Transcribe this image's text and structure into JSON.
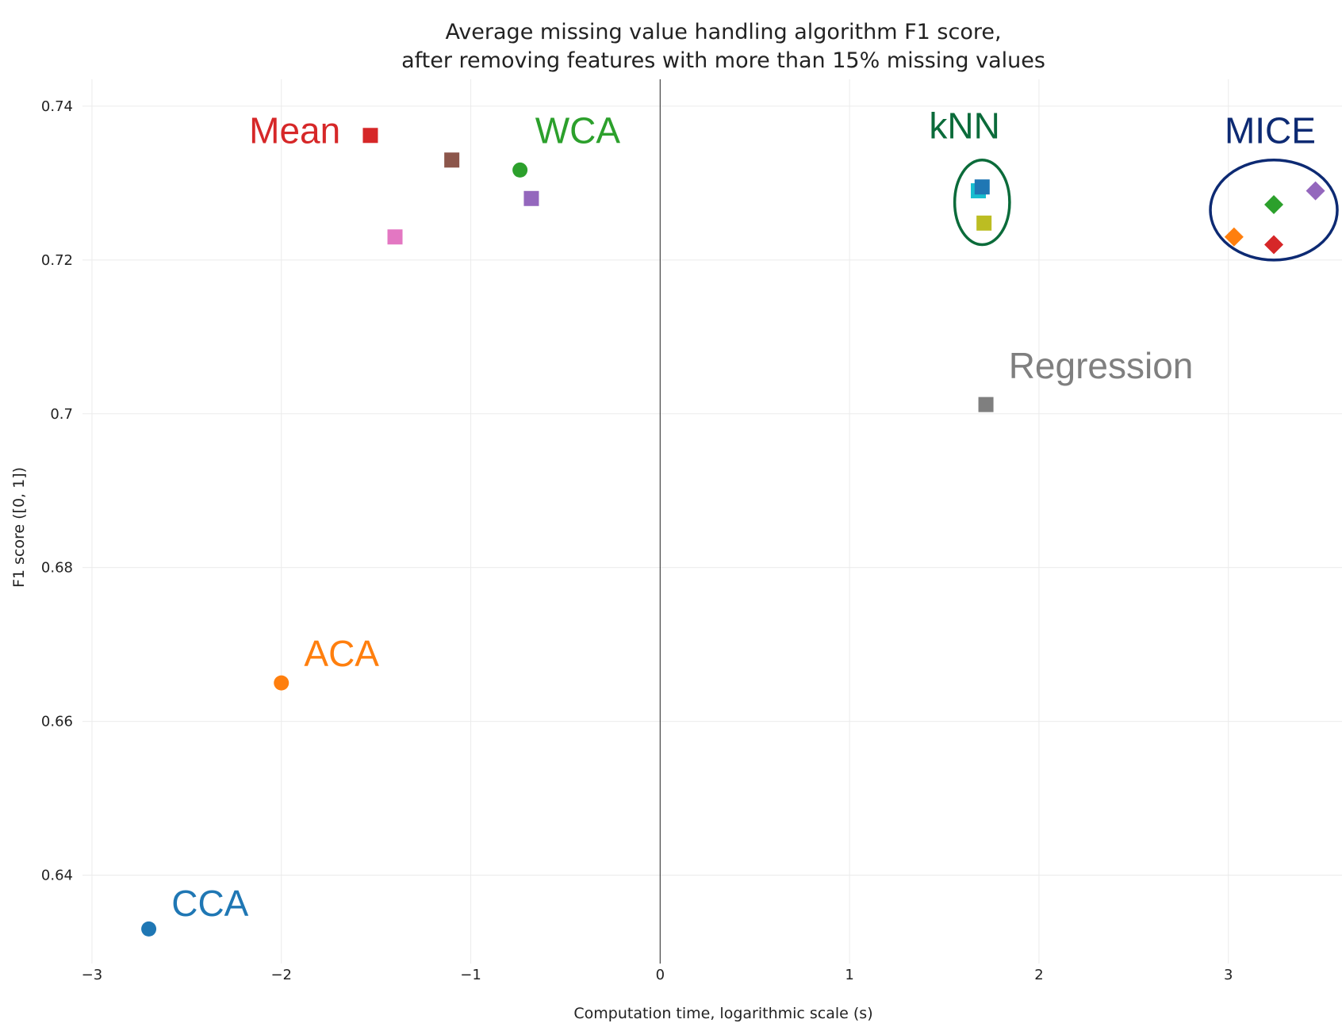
{
  "chart_data": {
    "type": "scatter",
    "title": [
      "Average missing value handling algorithm F1 score,",
      "after removing features with more than 15% missing values"
    ],
    "xlabel": "Computation time, logarithmic scale (s)",
    "ylabel": "F1 score ([0, 1])",
    "xlim": [
      -3.05,
      3.6
    ],
    "ylim": [
      0.6285,
      0.7435
    ],
    "xticks": [
      -3,
      -2,
      -1,
      0,
      1,
      2,
      3
    ],
    "xtick_labels": [
      "−3",
      "−2",
      "−1",
      "0",
      "1",
      "2",
      "3"
    ],
    "yticks": [
      0.64,
      0.66,
      0.68,
      0.7,
      0.72,
      0.74
    ],
    "ytick_labels": [
      "0.64",
      "0.66",
      "0.68",
      "0.7",
      "0.72",
      "0.74"
    ],
    "grid": true,
    "zero_line": "x = 0 vertical line",
    "points": [
      {
        "x": -2.7,
        "y": 0.633,
        "marker": "circle",
        "color": "#1f77b4"
      },
      {
        "x": -2.0,
        "y": 0.665,
        "marker": "circle",
        "color": "#ff7f0e"
      },
      {
        "x": -1.53,
        "y": 0.7362,
        "marker": "square",
        "color": "#d62728"
      },
      {
        "x": -1.1,
        "y": 0.733,
        "marker": "square",
        "color": "#8c564b"
      },
      {
        "x": -1.4,
        "y": 0.723,
        "marker": "square",
        "color": "#e377c2"
      },
      {
        "x": -0.74,
        "y": 0.7317,
        "marker": "circle",
        "color": "#2ca02c"
      },
      {
        "x": -0.68,
        "y": 0.728,
        "marker": "square",
        "color": "#9467bd"
      },
      {
        "x": 1.68,
        "y": 0.729,
        "marker": "square",
        "color": "#17becf"
      },
      {
        "x": 1.7,
        "y": 0.7295,
        "marker": "square",
        "color": "#1f77b4"
      },
      {
        "x": 1.71,
        "y": 0.7248,
        "marker": "square",
        "color": "#bcbd22"
      },
      {
        "x": 1.72,
        "y": 0.7012,
        "marker": "square",
        "color": "#7f7f7f"
      },
      {
        "x": 3.03,
        "y": 0.723,
        "marker": "diamond",
        "color": "#ff7f0e"
      },
      {
        "x": 3.24,
        "y": 0.7272,
        "marker": "diamond",
        "color": "#2ca02c"
      },
      {
        "x": 3.24,
        "y": 0.722,
        "marker": "diamond",
        "color": "#d62728"
      },
      {
        "x": 3.46,
        "y": 0.729,
        "marker": "diamond",
        "color": "#9467bd"
      }
    ],
    "annotations": [
      {
        "text": "CCA",
        "x": -2.58,
        "y": 0.6347,
        "color": "#1f77b4"
      },
      {
        "text": "ACA",
        "x": -1.88,
        "y": 0.6672,
        "color": "#ff7f0e"
      },
      {
        "text": "Mean",
        "x": -2.17,
        "y": 0.7352,
        "color": "#d62728"
      },
      {
        "text": "WCA",
        "x": -0.66,
        "y": 0.7352,
        "color": "#2ca02c"
      },
      {
        "text": "kNN",
        "x": 1.42,
        "y": 0.7358,
        "color": "#0b6b3a"
      },
      {
        "text": "Regression",
        "x": 1.84,
        "y": 0.7046,
        "color": "#7f7f7f"
      },
      {
        "text": "MICE",
        "x": 2.98,
        "y": 0.7352,
        "color": "#0d2a73"
      }
    ],
    "group_outlines": [
      {
        "label": "kNN",
        "cx": 1.7,
        "cy": 0.7275,
        "rx": 0.145,
        "ry": 0.0055,
        "color": "#0b6b3a"
      },
      {
        "label": "MICE",
        "cx": 3.24,
        "cy": 0.7265,
        "rx": 0.335,
        "ry": 0.0065,
        "color": "#0d2a73"
      }
    ]
  }
}
